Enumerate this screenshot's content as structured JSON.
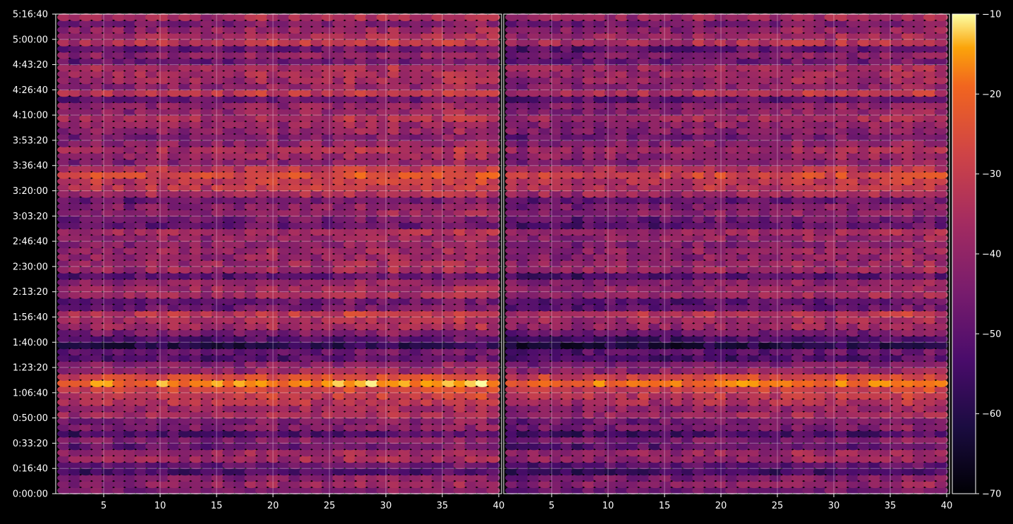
{
  "chart_data": {
    "type": "heatmap",
    "title": "",
    "xlabel": "",
    "ylabel": "",
    "colormap": "inferno",
    "background": "#000000",
    "grid": true,
    "panels": [
      {
        "name": "",
        "x_range": [
          1,
          40
        ],
        "x_ticks": [
          5,
          10,
          15,
          20,
          25,
          30,
          35,
          40
        ]
      },
      {
        "name": "",
        "x_range": [
          1,
          40
        ],
        "x_ticks": [
          5,
          10,
          15,
          20,
          25,
          30,
          35,
          40
        ]
      }
    ],
    "y_range_seconds": [
      0,
      19000
    ],
    "y_ticks": [
      "0:00:00",
      "0:16:40",
      "0:33:20",
      "0:50:00",
      "1:06:40",
      "1:23:20",
      "1:40:00",
      "1:56:40",
      "2:13:20",
      "2:30:00",
      "2:46:40",
      "3:03:20",
      "3:20:00",
      "3:36:40",
      "3:53:20",
      "4:10:00",
      "4:26:40",
      "4:43:20",
      "5:00:00",
      "5:16:40"
    ],
    "colorbar": {
      "range": [
        -70,
        -10
      ],
      "ticks": [
        "−70",
        "−60",
        "−50",
        "−40",
        "−30",
        "−20",
        "−10"
      ]
    },
    "row_levels_dB": [
      {
        "time": "0:00:00",
        "value": -45
      },
      {
        "time": "0:08:20",
        "value": -48
      },
      {
        "time": "0:16:40",
        "value": -55
      },
      {
        "time": "0:25:00",
        "value": -42
      },
      {
        "time": "0:33:20",
        "value": -46
      },
      {
        "time": "0:41:40",
        "value": -50
      },
      {
        "time": "0:50:00",
        "value": -44
      },
      {
        "time": "0:58:20",
        "value": -35
      },
      {
        "time": "1:06:40",
        "value": -30
      },
      {
        "time": "1:15:00",
        "value": -24
      },
      {
        "time": "1:23:20",
        "value": -38
      },
      {
        "time": "1:31:40",
        "value": -52
      },
      {
        "time": "1:40:00",
        "value": -56
      },
      {
        "time": "1:48:20",
        "value": -40
      },
      {
        "time": "1:56:40",
        "value": -32
      },
      {
        "time": "2:05:00",
        "value": -55
      },
      {
        "time": "2:13:20",
        "value": -40
      },
      {
        "time": "2:21:40",
        "value": -48
      },
      {
        "time": "2:30:00",
        "value": -38
      },
      {
        "time": "2:38:20",
        "value": -44
      },
      {
        "time": "2:46:40",
        "value": -40
      },
      {
        "time": "2:55:00",
        "value": -46
      },
      {
        "time": "3:03:20",
        "value": -50
      },
      {
        "time": "3:11:40",
        "value": -44
      },
      {
        "time": "3:20:00",
        "value": -38
      },
      {
        "time": "3:28:20",
        "value": -30
      },
      {
        "time": "3:36:40",
        "value": -40
      },
      {
        "time": "3:45:00",
        "value": -46
      },
      {
        "time": "3:53:20",
        "value": -42
      },
      {
        "time": "4:01:40",
        "value": -45
      },
      {
        "time": "4:10:00",
        "value": -42
      },
      {
        "time": "4:18:20",
        "value": -47
      },
      {
        "time": "4:26:40",
        "value": -38
      },
      {
        "time": "4:35:00",
        "value": -36
      },
      {
        "time": "4:43:20",
        "value": -45
      },
      {
        "time": "4:51:40",
        "value": -50
      },
      {
        "time": "5:00:00",
        "value": -36
      },
      {
        "time": "5:08:20",
        "value": -42
      },
      {
        "time": "5:16:40",
        "value": -34
      }
    ]
  }
}
